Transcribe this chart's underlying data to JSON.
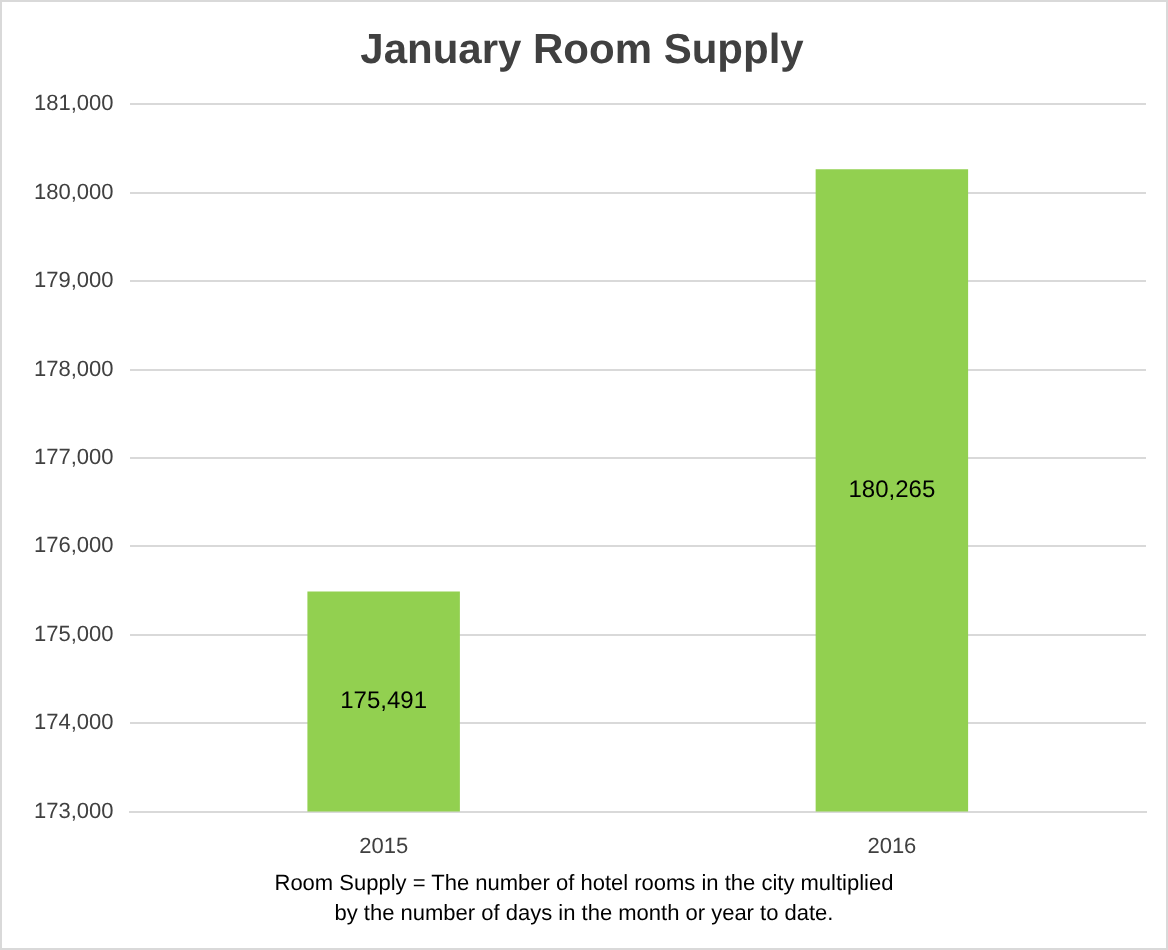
{
  "chart_data": {
    "type": "bar",
    "title": "January Room Supply",
    "categories": [
      "2015",
      "2016"
    ],
    "values": [
      175491,
      180265
    ],
    "color": "#92d050",
    "ylim": [
      173000,
      181000
    ],
    "yticks": [
      {
        "value": 173000,
        "label": "173,000"
      },
      {
        "value": 174000,
        "label": "174,000"
      },
      {
        "value": 175000,
        "label": "175,000"
      },
      {
        "value": 176000,
        "label": "176,000"
      },
      {
        "value": 177000,
        "label": "177,000"
      },
      {
        "value": 178000,
        "label": "178,000"
      },
      {
        "value": 179000,
        "label": "179,000"
      },
      {
        "value": 180000,
        "label": "180,000"
      },
      {
        "value": 181000,
        "label": "181,000"
      }
    ],
    "value_labels": [
      "175,491",
      "180,265"
    ],
    "grid": "y",
    "legend": false,
    "annotations": [
      "Room Supply = The number of hotel rooms in the city multiplied by the number of days in the month or year to date."
    ]
  }
}
